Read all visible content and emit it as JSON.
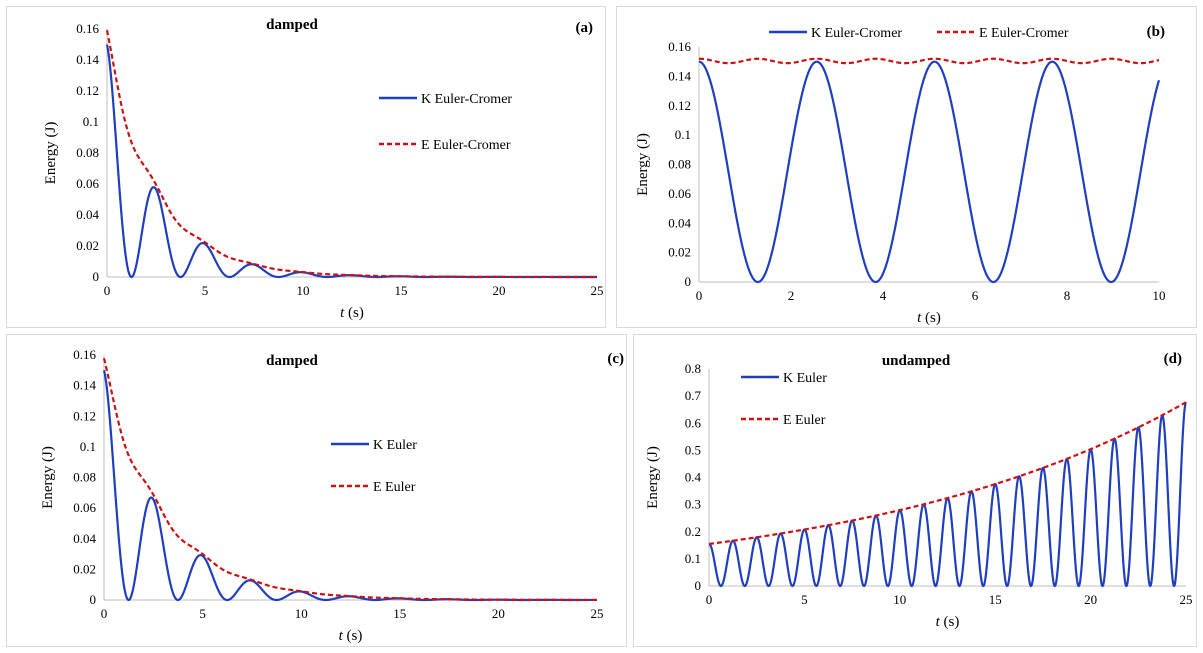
{
  "colors": {
    "K": "#1f3fbf",
    "E": "#cc1111",
    "axis": "#bfbfbf"
  },
  "chart_data": [
    {
      "id": "a",
      "type": "line",
      "panel_label": "(a)",
      "title": "damped",
      "xlabel": "s",
      "xlabel_italic": "t",
      "ylabel": "Energy (J)",
      "xlim": [
        0,
        25
      ],
      "ylim": [
        0,
        0.16
      ],
      "xticks": [
        "0",
        "5",
        "10",
        "15",
        "20",
        "25"
      ],
      "yticks": [
        "0",
        "0.02",
        "0.04",
        "0.06",
        "0.08",
        "0.1",
        "0.12",
        "0.14",
        "0.16"
      ],
      "legend_position": "right",
      "series": [
        {
          "name": "K Euler-Cromer",
          "style": "solid",
          "color": "#1f3fbf",
          "model": {
            "kind": "kinetic",
            "E0": 0.15,
            "gamma": 0.39,
            "period": 2.5,
            "phase": 1.5708
          }
        },
        {
          "name": "E Euler-Cromer",
          "style": "dashed",
          "color": "#cc1111",
          "model": {
            "kind": "total",
            "E0": 0.15,
            "gamma": 0.39,
            "period": 2.5,
            "ripple": 0.35
          }
        }
      ]
    },
    {
      "id": "b",
      "type": "line",
      "panel_label": "(b)",
      "title": "",
      "xlabel": "s",
      "xlabel_italic": "t",
      "ylabel": "Energy (J)",
      "xlim": [
        0,
        10
      ],
      "ylim": [
        0,
        0.16
      ],
      "xticks": [
        "0",
        "2",
        "4",
        "6",
        "8",
        "10"
      ],
      "yticks": [
        "0",
        "0.02",
        "0.04",
        "0.06",
        "0.08",
        "0.1",
        "0.12",
        "0.14",
        "0.16"
      ],
      "legend_position": "top",
      "series": [
        {
          "name": "K Euler-Cromer",
          "style": "solid",
          "color": "#1f3fbf",
          "model": {
            "kind": "kinetic",
            "E0": 0.15,
            "gamma": 0,
            "period": 2.56,
            "phase": 1.5708
          }
        },
        {
          "name": "E Euler-Cromer",
          "style": "dashed",
          "color": "#cc1111",
          "model": {
            "kind": "flat",
            "E0": 0.1505,
            "amp": 0.0015,
            "period": 1.28
          }
        }
      ]
    },
    {
      "id": "c",
      "type": "line",
      "panel_label": "(c)",
      "title": "damped",
      "xlabel": "s",
      "xlabel_italic": "t",
      "ylabel": "Energy (J)",
      "xlim": [
        0,
        25
      ],
      "ylim": [
        0,
        0.16
      ],
      "xticks": [
        "0",
        "5",
        "10",
        "15",
        "20",
        "25"
      ],
      "yticks": [
        "0",
        "0.02",
        "0.04",
        "0.06",
        "0.08",
        "0.1",
        "0.12",
        "0.14",
        "0.16"
      ],
      "legend_position": "right",
      "series": [
        {
          "name": "K Euler",
          "style": "solid",
          "color": "#1f3fbf",
          "model": {
            "kind": "kinetic",
            "E0": 0.15,
            "gamma": 0.33,
            "period": 2.5,
            "phase": 1.5708
          }
        },
        {
          "name": "E Euler",
          "style": "dashed",
          "color": "#cc1111",
          "model": {
            "kind": "total",
            "E0": 0.15,
            "gamma": 0.33,
            "period": 2.5,
            "ripple": 0.3
          }
        }
      ]
    },
    {
      "id": "d",
      "type": "line",
      "panel_label": "(d)",
      "title": "undamped",
      "xlabel": "s",
      "xlabel_italic": "t",
      "ylabel": "Energy (J)",
      "xlim": [
        0,
        25
      ],
      "ylim": [
        0,
        0.8
      ],
      "xticks": [
        "0",
        "5",
        "10",
        "15",
        "20",
        "25"
      ],
      "yticks": [
        "0",
        "0.1",
        "0.2",
        "0.3",
        "0.4",
        "0.5",
        "0.6",
        "0.7",
        "0.8"
      ],
      "legend_position": "left",
      "series": [
        {
          "name": "K Euler",
          "style": "solid",
          "color": "#1f3fbf",
          "model": {
            "kind": "kinetic",
            "E0": 0.155,
            "gamma": -0.059,
            "period": 1.25,
            "phase": 1.5708
          }
        },
        {
          "name": "E Euler",
          "style": "dashed",
          "color": "#cc1111",
          "model": {
            "kind": "growth",
            "E0": 0.155,
            "gamma": -0.059
          }
        }
      ]
    }
  ]
}
